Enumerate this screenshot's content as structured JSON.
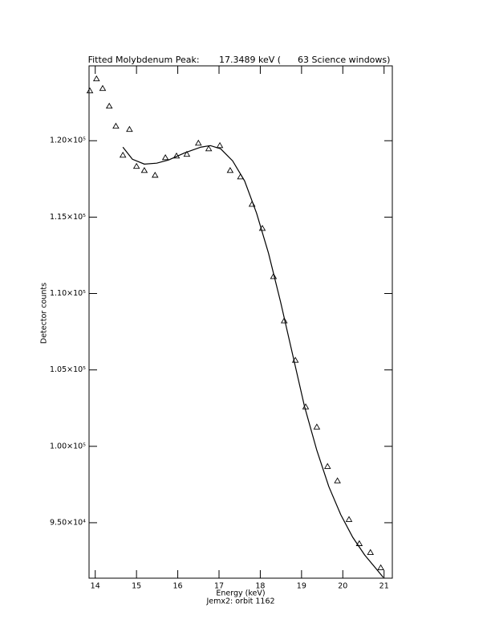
{
  "chart_data": {
    "type": "scatter",
    "title": "Fitted Molybdenum Peak:       17.3489 keV (      63 Science windows)",
    "x_label": "Energy (keV)",
    "subtitle": "Jemx2: orbit 1162",
    "y_label": "Detector counts",
    "xlim": [
      13.85,
      21.2
    ],
    "xticks": [
      14,
      15,
      16,
      17,
      18,
      19,
      20,
      21
    ],
    "ylim": [
      91370,
      124900
    ],
    "yticks": [
      {
        "value": 95000,
        "label": "9.50×10⁴"
      },
      {
        "value": 100000,
        "label": "1.00×10⁵"
      },
      {
        "value": 105000,
        "label": "1.05×10⁵"
      },
      {
        "value": 110000,
        "label": "1.10×10⁵"
      },
      {
        "value": 115000,
        "label": "1.15×10⁵"
      },
      {
        "value": 120000,
        "label": "1.20×10⁵"
      }
    ],
    "series": [
      {
        "style": "triangle",
        "color": "#000000",
        "x": [
          13.87,
          14.03,
          14.18,
          14.34,
          14.5,
          14.67,
          14.83,
          15.0,
          15.19,
          15.45,
          15.7,
          15.97,
          16.22,
          16.5,
          16.75,
          17.02,
          17.27,
          17.52,
          17.8,
          18.05,
          18.32,
          18.58,
          18.85,
          19.1,
          19.37,
          19.63,
          19.87,
          20.15,
          20.4,
          20.67,
          20.92
        ],
        "values": [
          123260,
          124050,
          123420,
          122260,
          120950,
          119050,
          120740,
          118320,
          118050,
          117740,
          118890,
          119000,
          119110,
          119840,
          119470,
          119680,
          118050,
          117630,
          115840,
          114260,
          111110,
          108210,
          105630,
          102580,
          101260,
          98680,
          97740,
          95210,
          93630,
          93050,
          92050
        ]
      },
      {
        "style": "line",
        "color": "#000000",
        "x": [
          14.67,
          14.9,
          15.19,
          15.49,
          15.78,
          16.17,
          16.56,
          16.79,
          17.04,
          17.33,
          17.62,
          17.91,
          18.2,
          18.49,
          18.78,
          19.07,
          19.37,
          19.66,
          19.95,
          20.24,
          20.53,
          20.82,
          20.98
        ],
        "values": [
          119580,
          118790,
          118470,
          118530,
          118740,
          119210,
          119580,
          119680,
          119470,
          118680,
          117370,
          115260,
          112630,
          109470,
          106050,
          102630,
          99740,
          97370,
          95530,
          94050,
          92890,
          91950,
          91420
        ]
      }
    ]
  }
}
